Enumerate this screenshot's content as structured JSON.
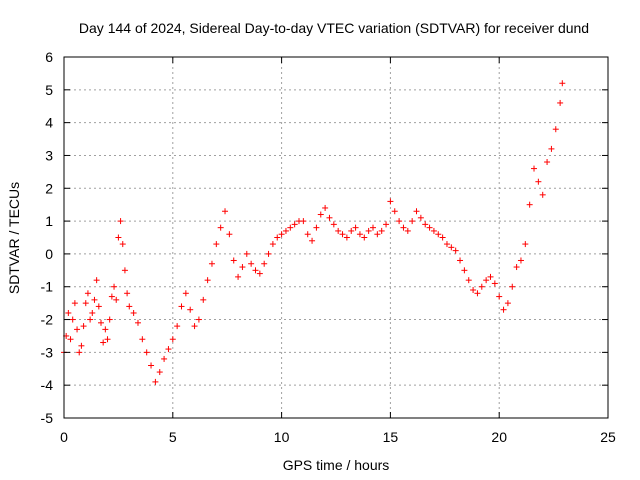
{
  "chart_data": {
    "type": "scatter",
    "title": "Day 144 of 2024, Sidereal Day-to-day VTEC variation (SDTVAR) for receiver dund",
    "xlabel": "GPS time / hours",
    "ylabel": "SDTVAR / TECUs",
    "xlim": [
      0,
      25
    ],
    "ylim": [
      -5,
      6
    ],
    "xticks": [
      0,
      5,
      10,
      15,
      20,
      25
    ],
    "xtick_labels": [
      "0",
      "5",
      "10",
      "15",
      "20",
      "25"
    ],
    "yticks": [
      -5,
      -4,
      -3,
      -2,
      -1,
      0,
      1,
      2,
      3,
      4,
      5,
      6
    ],
    "ytick_labels": [
      "-5",
      "-4",
      "-3",
      "-2",
      "-1",
      "0",
      "1",
      "2",
      "3",
      "4",
      "5",
      "6"
    ],
    "grid": true,
    "marker": "+",
    "series": [
      {
        "name": "SDTVAR",
        "color": "#ff0000",
        "x": [
          0.0,
          0.1,
          0.2,
          0.3,
          0.4,
          0.5,
          0.6,
          0.7,
          0.8,
          0.9,
          1.0,
          1.1,
          1.2,
          1.3,
          1.4,
          1.5,
          1.6,
          1.7,
          1.8,
          1.9,
          2.0,
          2.1,
          2.2,
          2.3,
          2.4,
          2.5,
          2.6,
          2.7,
          2.8,
          2.9,
          3.0,
          3.2,
          3.4,
          3.6,
          3.8,
          4.0,
          4.2,
          4.4,
          4.6,
          4.8,
          5.0,
          5.2,
          5.4,
          5.6,
          5.8,
          6.0,
          6.2,
          6.4,
          6.6,
          6.8,
          7.0,
          7.2,
          7.4,
          7.6,
          7.8,
          8.0,
          8.2,
          8.4,
          8.6,
          8.8,
          9.0,
          9.2,
          9.4,
          9.6,
          9.8,
          10.0,
          10.2,
          10.4,
          10.6,
          10.8,
          11.0,
          11.2,
          11.4,
          11.6,
          11.8,
          12.0,
          12.2,
          12.4,
          12.6,
          12.8,
          13.0,
          13.2,
          13.4,
          13.6,
          13.8,
          14.0,
          14.2,
          14.4,
          14.6,
          14.8,
          15.0,
          15.2,
          15.4,
          15.6,
          15.8,
          16.0,
          16.2,
          16.4,
          16.6,
          16.8,
          17.0,
          17.2,
          17.4,
          17.6,
          17.8,
          18.0,
          18.2,
          18.4,
          18.6,
          18.8,
          19.0,
          19.2,
          19.4,
          19.6,
          19.8,
          20.0,
          20.2,
          20.4,
          20.6,
          20.8,
          21.0,
          21.2,
          21.4,
          21.6,
          21.8,
          22.0,
          22.2,
          22.4,
          22.6,
          22.8,
          22.9
        ],
        "y": [
          -3.0,
          -2.5,
          -1.8,
          -2.6,
          -2.0,
          -1.5,
          -2.3,
          -3.0,
          -2.8,
          -2.2,
          -1.5,
          -1.2,
          -2.0,
          -1.8,
          -1.4,
          -0.8,
          -1.6,
          -2.1,
          -2.7,
          -2.3,
          -2.6,
          -2.0,
          -1.3,
          -1.0,
          -1.4,
          0.5,
          1.0,
          0.3,
          -0.5,
          -1.2,
          -1.6,
          -1.8,
          -2.1,
          -2.6,
          -3.0,
          -3.4,
          -3.9,
          -3.6,
          -3.2,
          -2.9,
          -2.6,
          -2.2,
          -1.6,
          -1.2,
          -1.7,
          -2.2,
          -2.0,
          -1.4,
          -0.8,
          -0.3,
          0.3,
          0.8,
          1.3,
          0.6,
          -0.2,
          -0.7,
          -0.4,
          0.0,
          -0.3,
          -0.5,
          -0.6,
          -0.3,
          0.0,
          0.3,
          0.5,
          0.6,
          0.7,
          0.8,
          0.9,
          1.0,
          1.0,
          0.6,
          0.4,
          0.8,
          1.2,
          1.4,
          1.1,
          0.9,
          0.7,
          0.6,
          0.5,
          0.7,
          0.8,
          0.6,
          0.5,
          0.7,
          0.8,
          0.6,
          0.7,
          0.9,
          1.6,
          1.3,
          1.0,
          0.8,
          0.7,
          1.0,
          1.3,
          1.1,
          0.9,
          0.8,
          0.7,
          0.6,
          0.5,
          0.3,
          0.2,
          0.1,
          -0.2,
          -0.5,
          -0.8,
          -1.1,
          -1.2,
          -1.0,
          -0.8,
          -0.7,
          -0.9,
          -1.3,
          -1.7,
          -1.5,
          -1.0,
          -0.4,
          -0.2,
          0.3,
          1.5,
          2.6,
          2.2,
          1.8,
          2.8,
          3.2,
          3.8,
          4.6,
          5.2
        ]
      }
    ]
  }
}
